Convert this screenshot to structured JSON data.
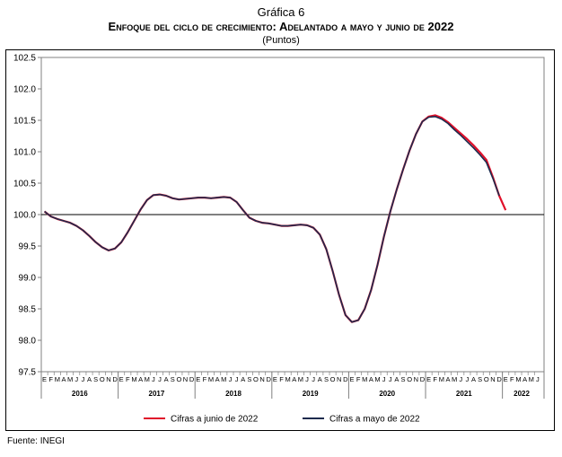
{
  "header": {
    "title": "Gráfica 6",
    "subtitle": "Enfoque del ciclo de crecimiento: Adelantado a mayo y junio de 2022",
    "units": "(Puntos)"
  },
  "source": "Fuente: INEGI",
  "chart_data": {
    "type": "line",
    "title": "Enfoque del ciclo de crecimiento: Adelantado a mayo y junio de 2022",
    "ylim": [
      97.5,
      102.5
    ],
    "yticks": [
      "97.5",
      "98.0",
      "98.5",
      "99.0",
      "99.5",
      "100.0",
      "100.5",
      "101.0",
      "101.5",
      "102.0",
      "102.5"
    ],
    "reference_line": 100.0,
    "month_labels": [
      "E",
      "F",
      "M",
      "A",
      "M",
      "J",
      "J",
      "A",
      "S",
      "O",
      "N",
      "D"
    ],
    "years": [
      "2016",
      "2017",
      "2018",
      "2019",
      "2020",
      "2021",
      "2022"
    ],
    "legend_position": "bottom",
    "series": [
      {
        "name": "Cifras a junio de 2022",
        "color": "#e0102a",
        "values": [
          100.05,
          99.97,
          99.93,
          99.9,
          99.87,
          99.82,
          99.75,
          99.66,
          99.56,
          99.48,
          99.43,
          99.46,
          99.56,
          99.72,
          99.9,
          100.08,
          100.23,
          100.31,
          100.32,
          100.3,
          100.26,
          100.24,
          100.25,
          100.26,
          100.27,
          100.27,
          100.26,
          100.27,
          100.28,
          100.27,
          100.2,
          100.07,
          99.95,
          99.9,
          99.87,
          99.86,
          99.84,
          99.82,
          99.82,
          99.83,
          99.84,
          99.83,
          99.79,
          99.68,
          99.45,
          99.1,
          98.72,
          98.4,
          98.29,
          98.32,
          98.5,
          98.8,
          99.2,
          99.65,
          100.05,
          100.4,
          100.72,
          101.02,
          101.28,
          101.48,
          101.56,
          101.58,
          101.54,
          101.47,
          101.38,
          101.29,
          101.2,
          101.1,
          100.99,
          100.87,
          100.6,
          100.3,
          100.07
        ]
      },
      {
        "name": "Cifras a mayo de 2022",
        "color": "#1d2a4d",
        "values": [
          100.05,
          99.97,
          99.93,
          99.9,
          99.87,
          99.82,
          99.75,
          99.66,
          99.56,
          99.48,
          99.43,
          99.46,
          99.56,
          99.72,
          99.9,
          100.08,
          100.23,
          100.31,
          100.32,
          100.3,
          100.26,
          100.24,
          100.25,
          100.26,
          100.27,
          100.27,
          100.26,
          100.27,
          100.28,
          100.27,
          100.2,
          100.07,
          99.95,
          99.9,
          99.87,
          99.86,
          99.84,
          99.82,
          99.82,
          99.83,
          99.84,
          99.83,
          99.79,
          99.68,
          99.45,
          99.1,
          98.72,
          98.4,
          98.29,
          98.32,
          98.5,
          98.8,
          99.2,
          99.65,
          100.05,
          100.4,
          100.72,
          101.02,
          101.28,
          101.48,
          101.55,
          101.56,
          101.52,
          101.45,
          101.35,
          101.26,
          101.16,
          101.06,
          100.95,
          100.83,
          100.58,
          100.3
        ]
      }
    ]
  }
}
